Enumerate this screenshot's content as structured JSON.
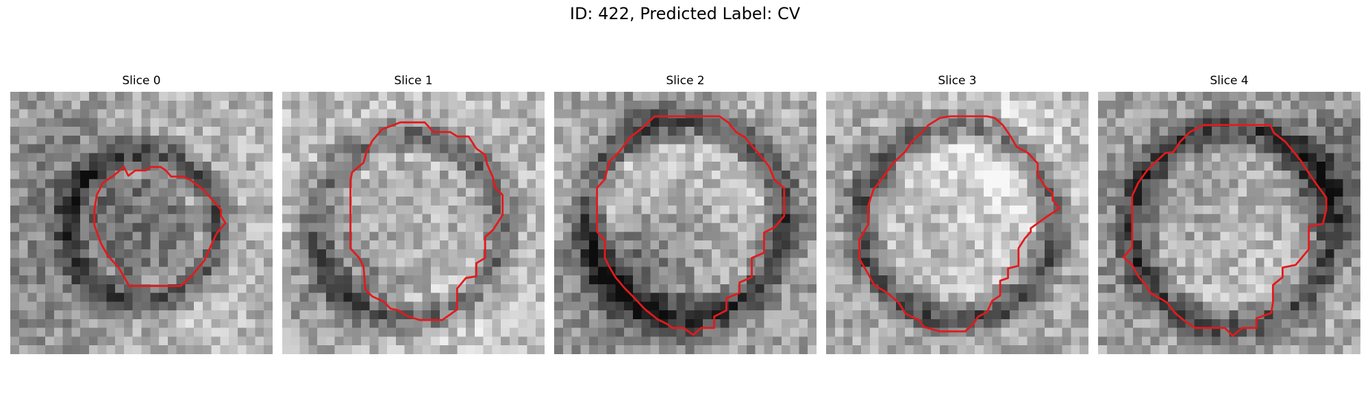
{
  "figure": {
    "title": "ID: 422, Predicted Label: CV"
  },
  "panels": [
    {
      "title": "Slice 0"
    },
    {
      "title": "Slice 1"
    },
    {
      "title": "Slice 2"
    },
    {
      "title": "Slice 3"
    },
    {
      "title": "Slice 4"
    }
  ],
  "colors": {
    "contour": "#e31a1c",
    "background": "#ffffff"
  }
}
